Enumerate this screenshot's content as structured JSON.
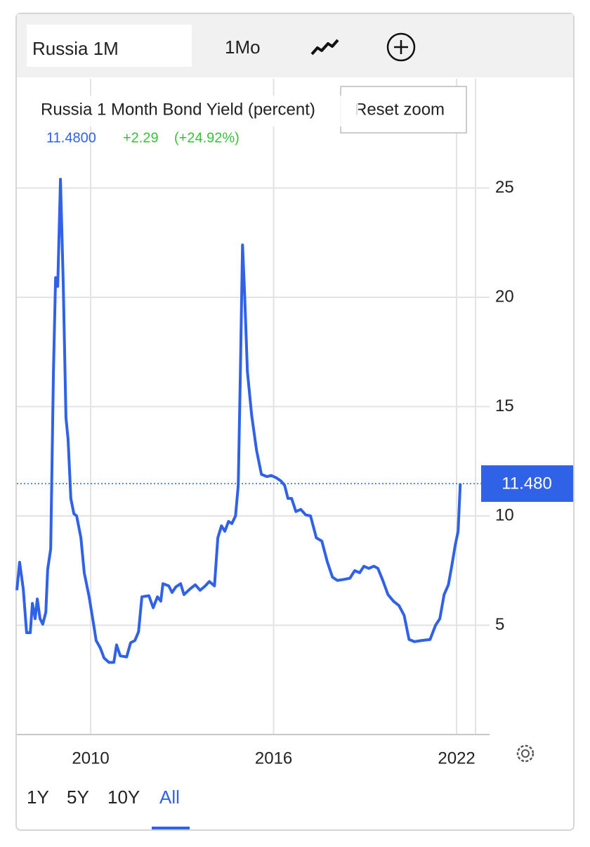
{
  "toolbar": {
    "instrument": "Russia 1M",
    "interval": "1Mo"
  },
  "reset_zoom": "Reset zoom",
  "ranges": [
    "1Y",
    "5Y",
    "10Y",
    "All"
  ],
  "chart_data": {
    "type": "line",
    "title": "Russia 1 Month Bond Yield (percent)",
    "last": {
      "value": 11.48,
      "label": "11.4800"
    },
    "change": {
      "value": 2.29,
      "label": "+2.29"
    },
    "change_pct": {
      "value": 24.92,
      "label": "(+24.92%)"
    },
    "current_marker": {
      "value": 11.48,
      "label": "11.480"
    },
    "color": "#2f62e6",
    "grid": true,
    "xlim": [
      2007.58,
      2022.62
    ],
    "xticks": [
      2010,
      2016,
      2022
    ],
    "ylim": [
      0,
      30
    ],
    "yticks": [
      5,
      10,
      15,
      20,
      25
    ],
    "x": [
      2007.58,
      2007.67,
      2007.79,
      2007.9,
      2008.02,
      2008.09,
      2008.18,
      2008.25,
      2008.34,
      2008.43,
      2008.53,
      2008.59,
      2008.69,
      2008.78,
      2008.85,
      2008.92,
      2009.01,
      2009.1,
      2009.19,
      2009.26,
      2009.35,
      2009.45,
      2009.54,
      2009.68,
      2009.79,
      2009.95,
      2010.09,
      2010.18,
      2010.32,
      2010.44,
      2010.6,
      2010.76,
      2010.85,
      2010.97,
      2011.18,
      2011.31,
      2011.45,
      2011.57,
      2011.68,
      2011.91,
      2012.05,
      2012.19,
      2012.3,
      2012.37,
      2012.56,
      2012.67,
      2012.79,
      2012.95,
      2013.06,
      2013.25,
      2013.43,
      2013.59,
      2013.76,
      2013.89,
      2014.06,
      2014.17,
      2014.29,
      2014.4,
      2014.52,
      2014.63,
      2014.75,
      2014.84,
      2014.91,
      2014.98,
      2015.05,
      2015.14,
      2015.28,
      2015.44,
      2015.6,
      2015.78,
      2015.92,
      2016.08,
      2016.24,
      2016.36,
      2016.47,
      2016.59,
      2016.73,
      2016.89,
      2017.05,
      2017.21,
      2017.4,
      2017.58,
      2017.76,
      2017.93,
      2018.09,
      2018.32,
      2018.5,
      2018.66,
      2018.82,
      2018.96,
      2019.12,
      2019.29,
      2019.42,
      2019.58,
      2019.75,
      2019.93,
      2020.11,
      2020.28,
      2020.44,
      2020.62,
      2020.85,
      2021.13,
      2021.31,
      2021.45,
      2021.59,
      2021.73,
      2021.84,
      2021.96,
      2022.05,
      2022.12
    ],
    "values": [
      6.6,
      7.88,
      6.66,
      4.66,
      4.66,
      6.0,
      5.3,
      6.2,
      5.3,
      5.05,
      5.6,
      7.55,
      8.5,
      16.6,
      20.9,
      20.5,
      25.4,
      20.7,
      14.5,
      13.5,
      10.8,
      10.1,
      10.0,
      9.0,
      7.4,
      6.3,
      5.1,
      4.3,
      3.95,
      3.5,
      3.3,
      3.3,
      4.1,
      3.6,
      3.55,
      4.2,
      4.3,
      4.7,
      6.3,
      6.35,
      5.8,
      6.3,
      6.1,
      6.9,
      6.8,
      6.5,
      6.75,
      6.9,
      6.4,
      6.65,
      6.85,
      6.6,
      6.8,
      7.0,
      6.8,
      9.0,
      9.55,
      9.3,
      9.75,
      9.65,
      10.0,
      11.4,
      16.6,
      22.4,
      20.1,
      16.6,
      14.6,
      13.0,
      11.9,
      11.8,
      11.85,
      11.75,
      11.6,
      11.4,
      10.8,
      10.8,
      10.2,
      10.3,
      10.05,
      10.0,
      9.0,
      8.85,
      7.9,
      7.2,
      7.05,
      7.1,
      7.15,
      7.5,
      7.4,
      7.7,
      7.6,
      7.7,
      7.6,
      7.05,
      6.4,
      6.1,
      5.9,
      5.45,
      4.35,
      4.25,
      4.3,
      4.35,
      5.0,
      5.3,
      6.4,
      6.85,
      7.7,
      8.7,
      9.3,
      11.48
    ]
  }
}
